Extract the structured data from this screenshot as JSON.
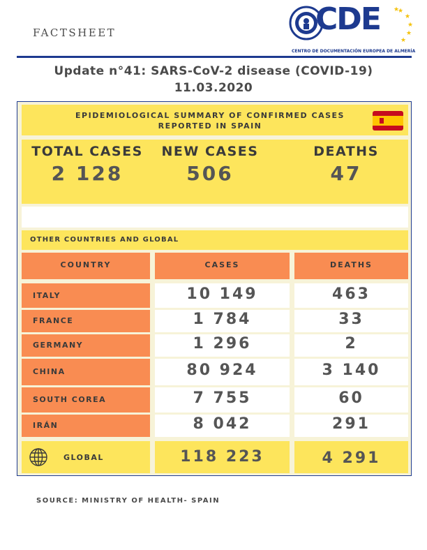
{
  "header": {
    "factsheet": "FACTSHEET",
    "logo_word": "CDE",
    "logo_subtitle": "CENTRO DE DOCUMENTACIÓN EUROPEA DE ALMERÍA"
  },
  "title_line1": "Update n°41: SARS-CoV-2 disease (COVID-19)",
  "title_line2": "11.03.2020",
  "spain": {
    "summary_line1": "EPIDEMIOLOGICAL SUMMARY OF CONFIRMED CASES",
    "summary_line2": "REPORTED IN SPAIN",
    "total_cases_label": "TOTAL CASES",
    "total_cases_value": "2 128",
    "new_cases_label": "NEW CASES",
    "new_cases_value": "506",
    "deaths_label": "DEATHS",
    "deaths_value": "47"
  },
  "other_label": "OTHER COUNTRIES AND GLOBAL",
  "table": {
    "headers": [
      "COUNTRY",
      "CASES",
      "DEATHS"
    ],
    "rows": [
      {
        "country": "ITALY",
        "cases": "10 149",
        "deaths": "463"
      },
      {
        "country": "FRANCE",
        "cases": "1 784",
        "deaths": "33"
      },
      {
        "country": "GERMANY",
        "cases": "1 296",
        "deaths": "2"
      },
      {
        "country": "CHINA",
        "cases": "80 924",
        "deaths": "3 140"
      },
      {
        "country": "SOUTH COREA",
        "cases": "7 755",
        "deaths": "60"
      },
      {
        "country": "IRÁN",
        "cases": "8 042",
        "deaths": "291"
      }
    ],
    "global": {
      "label": "GLOBAL",
      "cases": "118 223",
      "deaths": "4 291"
    }
  },
  "source": "SOURCE: MINISTRY OF HEALTH- SPAIN",
  "colors": {
    "brand_blue": "#1d3a8f",
    "yellow": "#fde55c",
    "orange": "#f98c52",
    "spain_red": "#c60b1e",
    "spain_yellow": "#ffc400"
  },
  "icons": [
    "emblem-seal-icon",
    "eu-stars-icon",
    "spain-flag-icon",
    "globe-icon"
  ]
}
